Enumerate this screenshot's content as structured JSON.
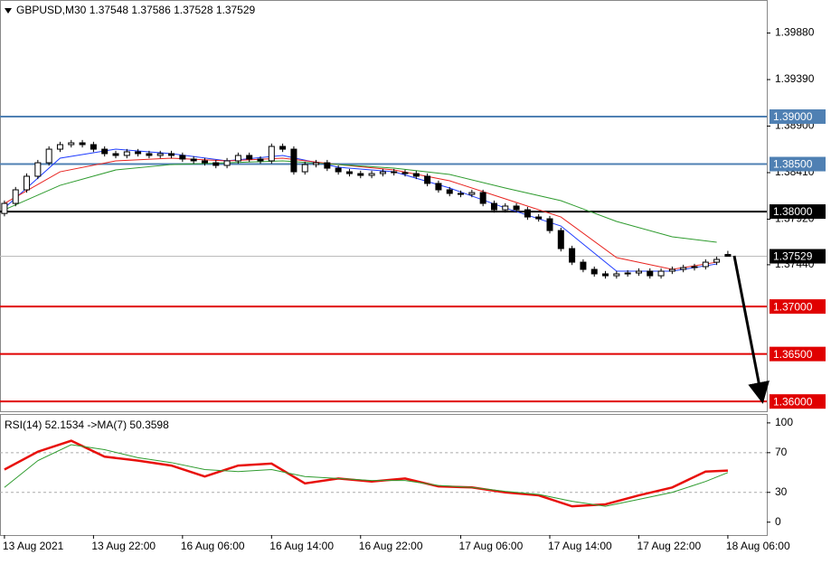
{
  "chart_data": [
    {
      "type": "candlestick",
      "title": "GBPUSD,M30  1.37548 1.37586 1.37528 1.37529",
      "xlim": [
        -0.4,
        68.5
      ],
      "ylim": [
        1.35897,
        1.40228
      ],
      "yticks": [
        {
          "value": 1.3988,
          "label": "1.39880"
        },
        {
          "value": 1.3939,
          "label": "1.39390"
        },
        {
          "value": 1.389,
          "label": "1.38900"
        },
        {
          "value": 1.3841,
          "label": "1.38410"
        },
        {
          "value": 1.3792,
          "label": "1.37920"
        },
        {
          "value": 1.3744,
          "label": "1.37440"
        }
      ],
      "open": [
        1.3798,
        1.38086,
        1.38229,
        1.38372,
        1.38514,
        1.38657,
        1.38705,
        1.38724,
        1.38705,
        1.38657,
        1.3861,
        1.38591,
        1.38629,
        1.3861,
        1.38591,
        1.3861,
        1.38591,
        1.38553,
        1.38534,
        1.38514,
        1.38486,
        1.38534,
        1.38591,
        1.38553,
        1.38534,
        1.38686,
        1.38657,
        1.38419,
        1.38495,
        1.38514,
        1.38457,
        1.38419,
        1.384,
        1.38381,
        1.384,
        1.38419,
        1.3841,
        1.384,
        1.38372,
        1.38296,
        1.38229,
        1.38191,
        1.38181,
        1.382,
        1.38086,
        1.38019,
        1.38058,
        1.38019,
        1.37943,
        1.37924,
        1.378,
        1.3761,
        1.37467,
        1.37391,
        1.37344,
        1.37324,
        1.37344,
        1.37353,
        1.37372,
        1.37324,
        1.37372,
        1.37391,
        1.3741,
        1.3742,
        1.37467,
        1.37548
      ],
      "high": [
        1.38116,
        1.38259,
        1.38402,
        1.38544,
        1.38687,
        1.38735,
        1.38754,
        1.38754,
        1.38735,
        1.38687,
        1.3864,
        1.38659,
        1.38659,
        1.3864,
        1.3864,
        1.3864,
        1.38621,
        1.38583,
        1.38564,
        1.38544,
        1.38564,
        1.38621,
        1.38621,
        1.38583,
        1.38716,
        1.38716,
        1.38687,
        1.38525,
        1.38544,
        1.38544,
        1.38487,
        1.38449,
        1.3843,
        1.3843,
        1.38449,
        1.38449,
        1.3844,
        1.3843,
        1.38402,
        1.38326,
        1.38259,
        1.38221,
        1.3823,
        1.3823,
        1.38116,
        1.38088,
        1.38088,
        1.38049,
        1.37973,
        1.37954,
        1.3783,
        1.3764,
        1.37497,
        1.37421,
        1.37374,
        1.37374,
        1.37383,
        1.37402,
        1.37402,
        1.37402,
        1.37421,
        1.3744,
        1.3745,
        1.37497,
        1.37526,
        1.37586
      ],
      "low": [
        1.3795,
        1.38056,
        1.38199,
        1.38342,
        1.38484,
        1.38627,
        1.38675,
        1.38675,
        1.38627,
        1.3858,
        1.38561,
        1.38561,
        1.3858,
        1.38561,
        1.38561,
        1.38561,
        1.38523,
        1.38504,
        1.38484,
        1.38456,
        1.38456,
        1.38504,
        1.38523,
        1.38504,
        1.38504,
        1.38627,
        1.38389,
        1.38389,
        1.38465,
        1.38427,
        1.38389,
        1.3837,
        1.38351,
        1.38351,
        1.3837,
        1.3838,
        1.3837,
        1.38342,
        1.38266,
        1.38199,
        1.38161,
        1.38151,
        1.38151,
        1.38056,
        1.37989,
        1.37989,
        1.37989,
        1.37913,
        1.37894,
        1.3777,
        1.3758,
        1.37437,
        1.37361,
        1.37314,
        1.37294,
        1.37294,
        1.37314,
        1.37323,
        1.37294,
        1.37294,
        1.37342,
        1.37361,
        1.3738,
        1.3739,
        1.37437,
        1.37528
      ],
      "close": [
        1.38086,
        1.38229,
        1.38372,
        1.38514,
        1.38657,
        1.38705,
        1.38724,
        1.38705,
        1.38657,
        1.3861,
        1.38591,
        1.38629,
        1.3861,
        1.38591,
        1.3861,
        1.38591,
        1.38553,
        1.38534,
        1.38514,
        1.38486,
        1.38534,
        1.38591,
        1.38553,
        1.38534,
        1.38686,
        1.38657,
        1.38419,
        1.38495,
        1.38514,
        1.38457,
        1.38419,
        1.384,
        1.38381,
        1.384,
        1.38419,
        1.3841,
        1.384,
        1.38372,
        1.38296,
        1.38229,
        1.38191,
        1.38181,
        1.382,
        1.38086,
        1.38019,
        1.38058,
        1.38019,
        1.37943,
        1.37924,
        1.378,
        1.3761,
        1.37467,
        1.37391,
        1.37344,
        1.37324,
        1.37344,
        1.37353,
        1.37372,
        1.37324,
        1.37372,
        1.37391,
        1.3741,
        1.3742,
        1.37467,
        1.37496,
        1.37529
      ],
      "lines": [
        {
          "color": "#1f3cff",
          "x": [
            0,
            5,
            10,
            15,
            20,
            25,
            30,
            35,
            40,
            45,
            50,
            55,
            60,
            64
          ],
          "values": [
            1.38038,
            1.38562,
            1.38657,
            1.3861,
            1.38534,
            1.38591,
            1.38467,
            1.38419,
            1.38248,
            1.38038,
            1.37848,
            1.37372,
            1.37372,
            1.37448
          ]
        },
        {
          "color": "#e8231f",
          "x": [
            0,
            5,
            10,
            15,
            20,
            25,
            30,
            35,
            40,
            45,
            50,
            55,
            60,
            64
          ],
          "values": [
            1.38086,
            1.38419,
            1.38534,
            1.38562,
            1.38534,
            1.38562,
            1.38495,
            1.38438,
            1.38324,
            1.38134,
            1.37943,
            1.37515,
            1.37391,
            1.37467
          ]
        },
        {
          "color": "#2e9b2e",
          "x": [
            0,
            5,
            10,
            15,
            20,
            25,
            30,
            35,
            40,
            45,
            50,
            55,
            60,
            64
          ],
          "values": [
            1.38019,
            1.38276,
            1.38438,
            1.38495,
            1.38514,
            1.38534,
            1.38495,
            1.38457,
            1.38391,
            1.38248,
            1.38115,
            1.37896,
            1.37734,
            1.37677
          ]
        }
      ],
      "levels": [
        {
          "value": 1.39,
          "label": "1.39000",
          "color": "#4f80b3"
        },
        {
          "value": 1.385,
          "label": "1.38500",
          "color": "#4f80b3"
        },
        {
          "value": 1.38,
          "label": "1.38000",
          "color": "#000000"
        },
        {
          "value": 1.37,
          "label": "1.37000",
          "color": "#e00000"
        },
        {
          "value": 1.365,
          "label": "1.36500",
          "color": "#e00000"
        },
        {
          "value": 1.36,
          "label": "1.36000",
          "color": "#e00000"
        }
      ],
      "price_line": 1.37529
    },
    {
      "type": "line",
      "title": "RSI(14) 52.1534  ->MA(7) 50.3598",
      "xlim": [
        -0.4,
        68.5
      ],
      "ylim": [
        -13,
        109
      ],
      "yticks": [
        100,
        70,
        30,
        0
      ],
      "levels": [
        70,
        30
      ],
      "xticks": [
        {
          "value": 0,
          "label": "13 Aug 2021"
        },
        {
          "value": 8,
          "label": "13 Aug 22:00"
        },
        {
          "value": 16,
          "label": "16 Aug 06:00"
        },
        {
          "value": 24,
          "label": "16 Aug 14:00"
        },
        {
          "value": 32,
          "label": "16 Aug 22:00"
        },
        {
          "value": 41,
          "label": "17 Aug 06:00"
        },
        {
          "value": 49,
          "label": "17 Aug 14:00"
        },
        {
          "value": 57,
          "label": "17 Aug 22:00"
        },
        {
          "value": 65,
          "label": "18 Aug 06:00"
        }
      ],
      "series": [
        {
          "color": "#e8100c",
          "x": [
            0,
            3,
            6,
            9,
            12,
            15,
            18,
            21,
            24,
            27,
            30,
            33,
            36,
            39,
            42,
            45,
            48,
            51,
            54,
            57,
            60,
            63,
            65
          ],
          "values": [
            53,
            71,
            82,
            66,
            62,
            57,
            46,
            57,
            59,
            39,
            44,
            41,
            44,
            36,
            35,
            30,
            27,
            16,
            18,
            27,
            35,
            51,
            52
          ]
        },
        {
          "color": "#2e9b2e",
          "x": [
            0,
            3,
            6,
            9,
            12,
            15,
            18,
            21,
            24,
            27,
            30,
            33,
            36,
            39,
            42,
            45,
            48,
            51,
            54,
            57,
            60,
            63,
            65
          ],
          "values": [
            35,
            62,
            78,
            73,
            65,
            60,
            53,
            51,
            53,
            46,
            44,
            42,
            42,
            37,
            35,
            31,
            28,
            21,
            16,
            23,
            30,
            41,
            50
          ]
        }
      ]
    }
  ]
}
